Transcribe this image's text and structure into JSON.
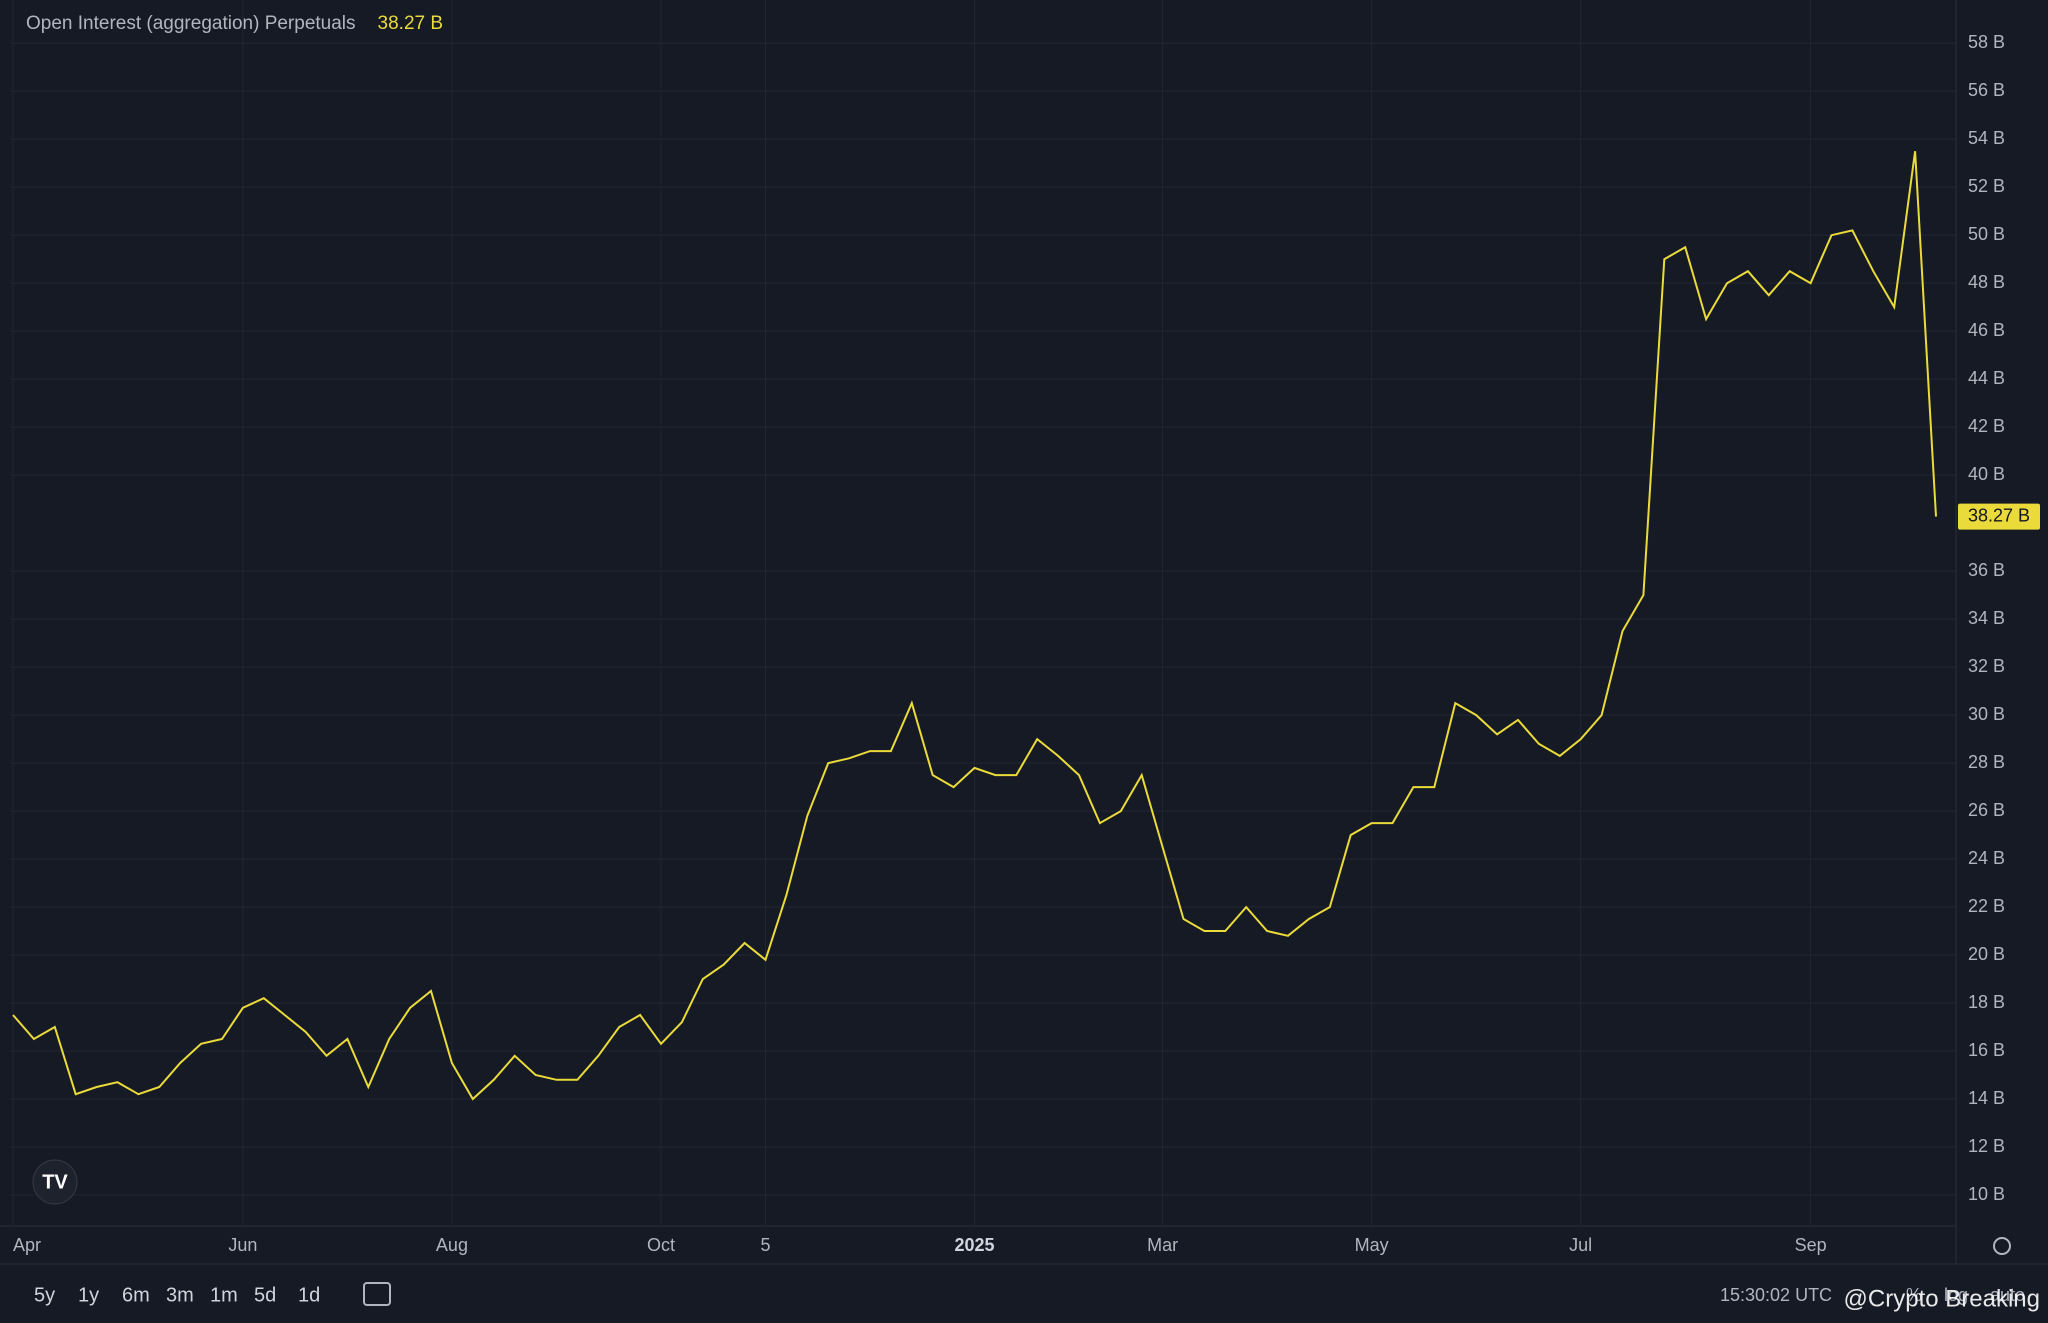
{
  "chart_data": {
    "type": "line",
    "title": "Open Interest (aggregation) Perpetuals",
    "current_value_label": "38.27 B",
    "color": "#eadb3a",
    "grid": true,
    "categories": [
      "Apr",
      null,
      null,
      null,
      null,
      null,
      null,
      null,
      null,
      null,
      null,
      "Jun",
      null,
      null,
      null,
      null,
      null,
      null,
      null,
      null,
      null,
      "Aug",
      null,
      null,
      null,
      null,
      null,
      null,
      null,
      null,
      null,
      "Oct",
      null,
      null,
      null,
      null,
      "5",
      null,
      null,
      null,
      null,
      null,
      null,
      null,
      null,
      null,
      "2025",
      null,
      null,
      null,
      null,
      null,
      null,
      null,
      null,
      "Mar",
      null,
      null,
      null,
      null,
      null,
      null,
      null,
      null,
      null,
      "May",
      null,
      null,
      null,
      null,
      null,
      null,
      null,
      null,
      null,
      "Jul",
      null,
      null,
      null,
      null,
      null,
      null,
      null,
      null,
      null,
      null,
      "Sep",
      null,
      null,
      null,
      null,
      null,
      null
    ],
    "values": [
      17.5,
      16.5,
      17,
      14.2,
      14.5,
      14.7,
      14.2,
      14.5,
      15.5,
      16.3,
      16.5,
      17.8,
      18.2,
      17.5,
      16.8,
      15.8,
      16.5,
      14.5,
      16.5,
      17.8,
      18.5,
      15.5,
      14,
      14.8,
      15.8,
      15,
      14.8,
      14.8,
      15.8,
      17,
      17.5,
      16.3,
      17.2,
      19,
      19.6,
      20.5,
      19.8,
      22.5,
      25.8,
      28,
      28.2,
      28.5,
      28.5,
      30.5,
      27.5,
      27,
      27.8,
      27.5,
      27.5,
      29,
      28.3,
      27.5,
      25.5,
      26,
      27.5,
      24.5,
      21.5,
      21,
      21,
      22,
      21,
      20.8,
      21.5,
      22,
      25,
      25.5,
      25.5,
      27,
      27,
      30.5,
      30,
      29.2,
      29.8,
      28.8,
      28.3,
      29,
      30,
      33.5,
      35,
      49,
      49.5,
      46.5,
      48,
      48.5,
      47.5,
      48.5,
      48,
      50,
      50.2,
      48.5,
      47,
      53.5,
      38.27
    ],
    "ylim": [
      8.75,
      59.8
    ],
    "yticks": [
      {
        "value": 10,
        "label": "10 B"
      },
      {
        "value": 12,
        "label": "12 B"
      },
      {
        "value": 14,
        "label": "14 B"
      },
      {
        "value": 16,
        "label": "16 B"
      },
      {
        "value": 18,
        "label": "18 B"
      },
      {
        "value": 20,
        "label": "20 B"
      },
      {
        "value": 22,
        "label": "22 B"
      },
      {
        "value": 24,
        "label": "24 B"
      },
      {
        "value": 26,
        "label": "26 B"
      },
      {
        "value": 28,
        "label": "28 B"
      },
      {
        "value": 30,
        "label": "30 B"
      },
      {
        "value": 32,
        "label": "32 B"
      },
      {
        "value": 34,
        "label": "34 B"
      },
      {
        "value": 36,
        "label": "36 B"
      },
      {
        "value": 40,
        "label": "40 B"
      },
      {
        "value": 42,
        "label": "42 B"
      },
      {
        "value": 44,
        "label": "44 B"
      },
      {
        "value": 46,
        "label": "46 B"
      },
      {
        "value": 48,
        "label": "48 B"
      },
      {
        "value": 50,
        "label": "50 B"
      },
      {
        "value": 52,
        "label": "52 B"
      },
      {
        "value": 54,
        "label": "54 B"
      },
      {
        "value": 56,
        "label": "56 B"
      },
      {
        "value": 58,
        "label": "58 B"
      }
    ]
  },
  "toolbar": {
    "ranges": [
      "5y",
      "1y",
      "6m",
      "3m",
      "1m",
      "5d",
      "1d"
    ],
    "time": "15:30:02 UTC",
    "percent": "%",
    "log": "log",
    "auto": "auto"
  },
  "watermark": "@Crypto Breaking"
}
